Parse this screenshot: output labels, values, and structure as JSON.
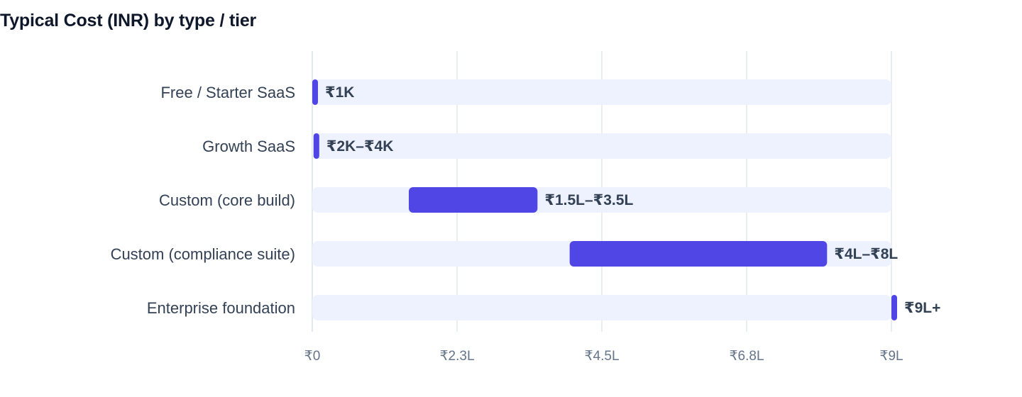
{
  "chart_data": {
    "type": "bar",
    "title": "Typical Cost (INR) by type / tier",
    "xlabel": "",
    "ylabel": "",
    "orientation": "horizontal-range",
    "grid": true,
    "xlim": [
      0,
      900000
    ],
    "categories": [
      "Free / Starter SaaS",
      "Growth SaaS",
      "Custom (core build)",
      "Custom (compliance suite)",
      "Enterprise foundation"
    ],
    "ranges": [
      {
        "low": 0,
        "high": 1000,
        "label": "₹1K"
      },
      {
        "low": 2000,
        "high": 4000,
        "label": "₹2K–₹4K"
      },
      {
        "low": 150000,
        "high": 350000,
        "label": "₹1.5L–₹3.5L"
      },
      {
        "low": 400000,
        "high": 800000,
        "label": "₹4L–₹8L"
      },
      {
        "low": 900000,
        "high": 900000,
        "label": "₹9L+"
      }
    ],
    "ticks": [
      {
        "value": 0,
        "label": "₹0"
      },
      {
        "value": 225000,
        "label": "₹2.3L"
      },
      {
        "value": 450000,
        "label": "₹4.5L"
      },
      {
        "value": 675000,
        "label": "₹6.8L"
      },
      {
        "value": 900000,
        "label": "₹9L"
      }
    ],
    "colors": {
      "bar": "#4f46e5",
      "track": "#eef2ff",
      "grid": "#e2e8f0"
    }
  }
}
